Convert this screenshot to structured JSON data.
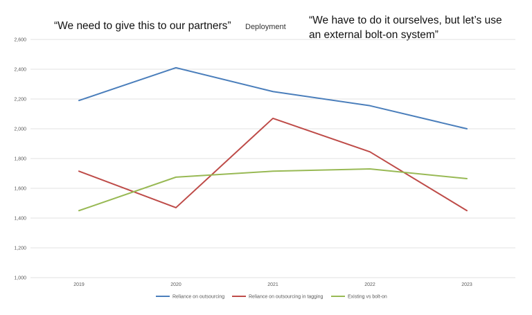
{
  "annotations": {
    "left_quote": "“We need to give this to our partners”",
    "right_quote": "“We have to do it ourselves, but let’s use an external bolt-on system”"
  },
  "chart_data": {
    "type": "line",
    "title": "Deployment",
    "xlabel": "",
    "ylabel": "",
    "categories": [
      "2019",
      "2020",
      "2021",
      "2022",
      "2023"
    ],
    "ylim": [
      1000,
      2600
    ],
    "yticks": [
      1000,
      1200,
      1400,
      1600,
      1800,
      2000,
      2200,
      2400,
      2600
    ],
    "ytick_labels": [
      "1,000",
      "1,200",
      "1,400",
      "1,600",
      "1,800",
      "2,000",
      "2,200",
      "2,400",
      "2,600"
    ],
    "grid": true,
    "legend_position": "bottom",
    "series": [
      {
        "name": "Reliance on outsourcing",
        "color": "#4a7ebb",
        "values": [
          2190,
          2410,
          2250,
          2155,
          2000
        ]
      },
      {
        "name": "Reliance on outsourcing in tagging",
        "color": "#be4b48",
        "values": [
          1715,
          1470,
          2070,
          1845,
          1450
        ]
      },
      {
        "name": "Existing vs bolt-on",
        "color": "#98b954",
        "values": [
          1450,
          1675,
          1715,
          1730,
          1665
        ]
      }
    ]
  }
}
